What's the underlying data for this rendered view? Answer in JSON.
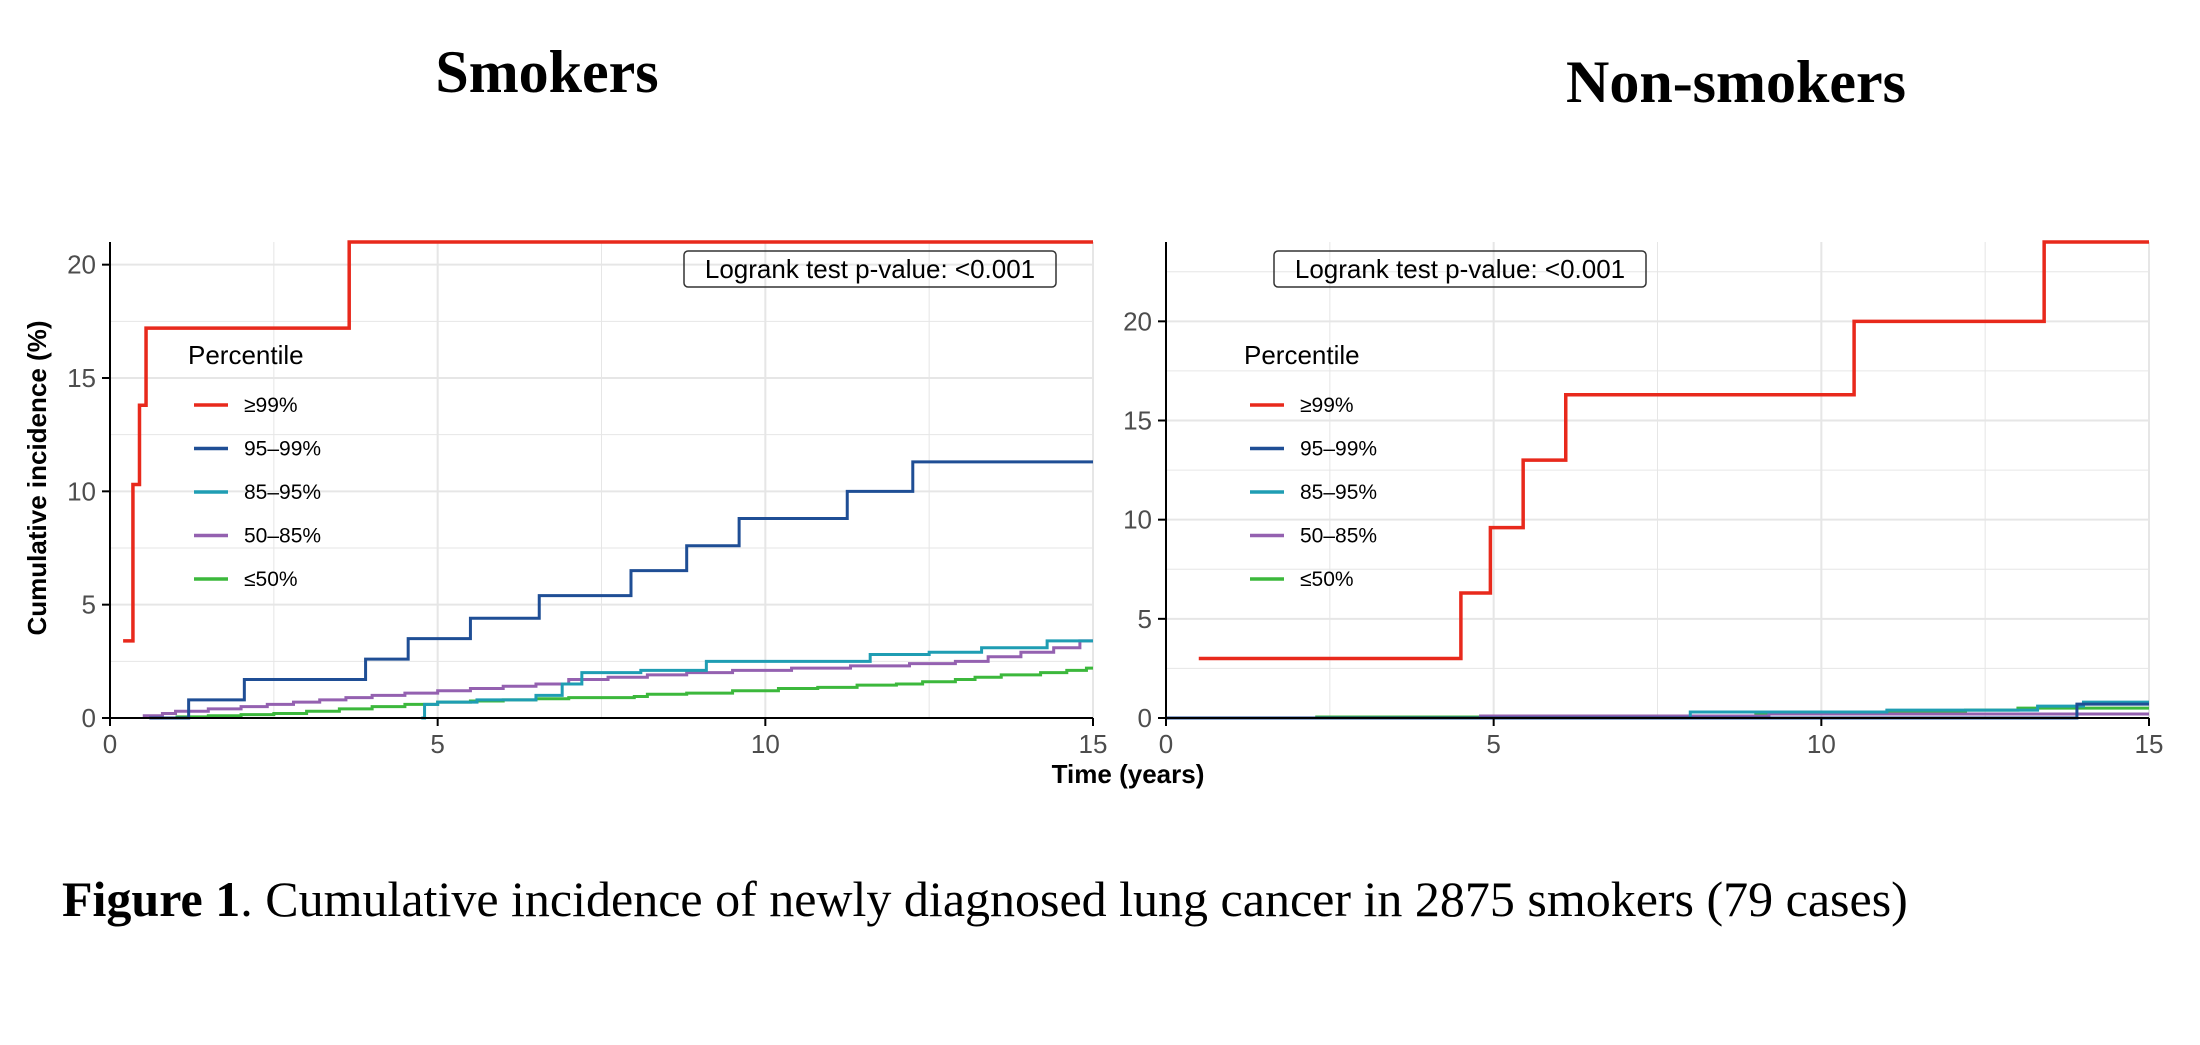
{
  "figure": {
    "caption_label": "Figure 1",
    "caption_text": ". Cumulative incidence of newly diagnosed lung cancer in 2875 smokers (79 cases)"
  },
  "colors": {
    "p99": "#e8291c",
    "p95_99": "#1f4e95",
    "p85_95": "#1f9db3",
    "p50_85": "#9461b0",
    "le50": "#3cb83c",
    "grid": "#e6e6e6",
    "axis": "#000000"
  },
  "chart_data": [
    {
      "type": "line",
      "step": true,
      "title": "Smokers",
      "xlabel": "Time (years)",
      "ylabel": "Cumulative incidence (%)",
      "xlim": [
        0,
        15
      ],
      "ylim": [
        0,
        21
      ],
      "xticks": [
        "0",
        "5",
        "10",
        "15"
      ],
      "yticks": [
        "0",
        "5",
        "10",
        "15",
        "20"
      ],
      "annotation": "Logrank test p-value: <0.001",
      "legend_title": "Percentile",
      "legend_position": "left",
      "series": [
        {
          "name": "≥99%",
          "color_key": "p99",
          "points": [
            [
              0.2,
              3.4
            ],
            [
              0.35,
              6.9
            ],
            [
              0.35,
              10.3
            ],
            [
              0.45,
              13.8
            ],
            [
              0.55,
              17.2
            ],
            [
              3.65,
              17.2
            ],
            [
              3.65,
              21.0
            ],
            [
              15,
              21.0
            ]
          ]
        },
        {
          "name": "95–99%",
          "color_key": "p95_99",
          "points": [
            [
              0.6,
              0
            ],
            [
              1.2,
              0.8
            ],
            [
              2.05,
              1.7
            ],
            [
              3.9,
              2.6
            ],
            [
              4.55,
              3.5
            ],
            [
              5.5,
              4.4
            ],
            [
              6.55,
              5.4
            ],
            [
              7.95,
              6.5
            ],
            [
              8.8,
              7.6
            ],
            [
              9.6,
              8.8
            ],
            [
              11.25,
              10.0
            ],
            [
              12.25,
              11.3
            ],
            [
              15,
              11.3
            ]
          ]
        },
        {
          "name": "85–95%",
          "color_key": "p85_95",
          "points": [
            [
              4.75,
              0
            ],
            [
              4.8,
              0.6
            ],
            [
              5.0,
              0.7
            ],
            [
              5.6,
              0.8
            ],
            [
              6.5,
              1.0
            ],
            [
              6.9,
              1.5
            ],
            [
              7.2,
              2.0
            ],
            [
              8.1,
              2.1
            ],
            [
              9.1,
              2.5
            ],
            [
              11.6,
              2.8
            ],
            [
              12.5,
              2.9
            ],
            [
              13.3,
              3.1
            ],
            [
              14.3,
              3.4
            ],
            [
              15,
              3.4
            ]
          ]
        },
        {
          "name": "50–85%",
          "color_key": "p50_85",
          "points": [
            [
              0.5,
              0.1
            ],
            [
              0.8,
              0.2
            ],
            [
              1.0,
              0.3
            ],
            [
              1.5,
              0.4
            ],
            [
              2.0,
              0.5
            ],
            [
              2.4,
              0.6
            ],
            [
              2.8,
              0.7
            ],
            [
              3.2,
              0.8
            ],
            [
              3.6,
              0.9
            ],
            [
              4.0,
              1.0
            ],
            [
              4.5,
              1.1
            ],
            [
              5.0,
              1.2
            ],
            [
              5.5,
              1.3
            ],
            [
              6.0,
              1.4
            ],
            [
              6.5,
              1.5
            ],
            [
              7.0,
              1.7
            ],
            [
              7.6,
              1.8
            ],
            [
              8.2,
              1.9
            ],
            [
              8.8,
              2.0
            ],
            [
              9.5,
              2.1
            ],
            [
              10.4,
              2.2
            ],
            [
              11.3,
              2.3
            ],
            [
              12.2,
              2.4
            ],
            [
              12.9,
              2.5
            ],
            [
              13.4,
              2.7
            ],
            [
              13.9,
              2.9
            ],
            [
              14.4,
              3.1
            ],
            [
              14.8,
              3.4
            ],
            [
              15,
              3.4
            ]
          ]
        },
        {
          "name": "≤50%",
          "color_key": "le50",
          "points": [
            [
              1.0,
              0.05
            ],
            [
              1.5,
              0.1
            ],
            [
              2.0,
              0.15
            ],
            [
              2.5,
              0.2
            ],
            [
              3.0,
              0.3
            ],
            [
              3.5,
              0.4
            ],
            [
              4.0,
              0.5
            ],
            [
              4.5,
              0.6
            ],
            [
              5.0,
              0.7
            ],
            [
              5.5,
              0.75
            ],
            [
              6.0,
              0.8
            ],
            [
              6.5,
              0.85
            ],
            [
              7.0,
              0.9
            ],
            [
              8.0,
              0.95
            ],
            [
              8.2,
              1.05
            ],
            [
              8.8,
              1.1
            ],
            [
              9.5,
              1.2
            ],
            [
              10.2,
              1.3
            ],
            [
              10.8,
              1.35
            ],
            [
              11.4,
              1.45
            ],
            [
              12.0,
              1.5
            ],
            [
              12.4,
              1.6
            ],
            [
              12.9,
              1.7
            ],
            [
              13.2,
              1.8
            ],
            [
              13.6,
              1.9
            ],
            [
              14.2,
              2.0
            ],
            [
              14.6,
              2.1
            ],
            [
              14.9,
              2.2
            ],
            [
              15,
              2.2
            ]
          ]
        }
      ]
    },
    {
      "type": "line",
      "step": true,
      "title": "Non-smokers",
      "xlabel": "",
      "ylabel": "",
      "xlim": [
        0,
        15
      ],
      "ylim": [
        0,
        24
      ],
      "xticks": [
        "0",
        "5",
        "10",
        "15"
      ],
      "yticks": [
        "0",
        "5",
        "10",
        "15",
        "20"
      ],
      "annotation": "Logrank test p-value: <0.001",
      "legend_title": "Percentile",
      "legend_position": "left",
      "series": [
        {
          "name": "≥99%",
          "color_key": "p99",
          "points": [
            [
              0.5,
              3.0
            ],
            [
              4.5,
              3.0
            ],
            [
              4.5,
              6.3
            ],
            [
              4.95,
              6.3
            ],
            [
              4.95,
              9.6
            ],
            [
              5.45,
              9.6
            ],
            [
              5.45,
              13.0
            ],
            [
              6.1,
              13.0
            ],
            [
              6.1,
              16.3
            ],
            [
              10.5,
              16.3
            ],
            [
              10.5,
              20.0
            ],
            [
              13.4,
              20.0
            ],
            [
              13.4,
              24.0
            ],
            [
              15,
              24.0
            ]
          ]
        },
        {
          "name": "95–99%",
          "color_key": "p95_99",
          "points": [
            [
              0,
              0
            ],
            [
              13.9,
              0
            ],
            [
              13.9,
              0.7
            ],
            [
              15,
              0.7
            ]
          ]
        },
        {
          "name": "85–95%",
          "color_key": "p85_95",
          "points": [
            [
              0,
              0
            ],
            [
              8.0,
              0
            ],
            [
              8.0,
              0.3
            ],
            [
              11.0,
              0.3
            ],
            [
              11.0,
              0.4
            ],
            [
              13.3,
              0.4
            ],
            [
              13.3,
              0.6
            ],
            [
              14.0,
              0.6
            ],
            [
              14.0,
              0.8
            ],
            [
              15,
              0.8
            ]
          ]
        },
        {
          "name": "50–85%",
          "color_key": "p50_85",
          "points": [
            [
              0,
              0
            ],
            [
              4.8,
              0
            ],
            [
              4.8,
              0.1
            ],
            [
              9.2,
              0.1
            ],
            [
              9.2,
              0.2
            ],
            [
              15,
              0.2
            ]
          ]
        },
        {
          "name": "≤50%",
          "color_key": "le50",
          "points": [
            [
              0,
              0
            ],
            [
              2.3,
              0
            ],
            [
              2.3,
              0.05
            ],
            [
              6.0,
              0.05
            ],
            [
              6.0,
              0.1
            ],
            [
              9.0,
              0.1
            ],
            [
              9.0,
              0.2
            ],
            [
              11.0,
              0.2
            ],
            [
              11.0,
              0.3
            ],
            [
              12.2,
              0.3
            ],
            [
              12.2,
              0.4
            ],
            [
              13.0,
              0.4
            ],
            [
              13.0,
              0.5
            ],
            [
              15,
              0.5
            ]
          ]
        }
      ]
    }
  ]
}
